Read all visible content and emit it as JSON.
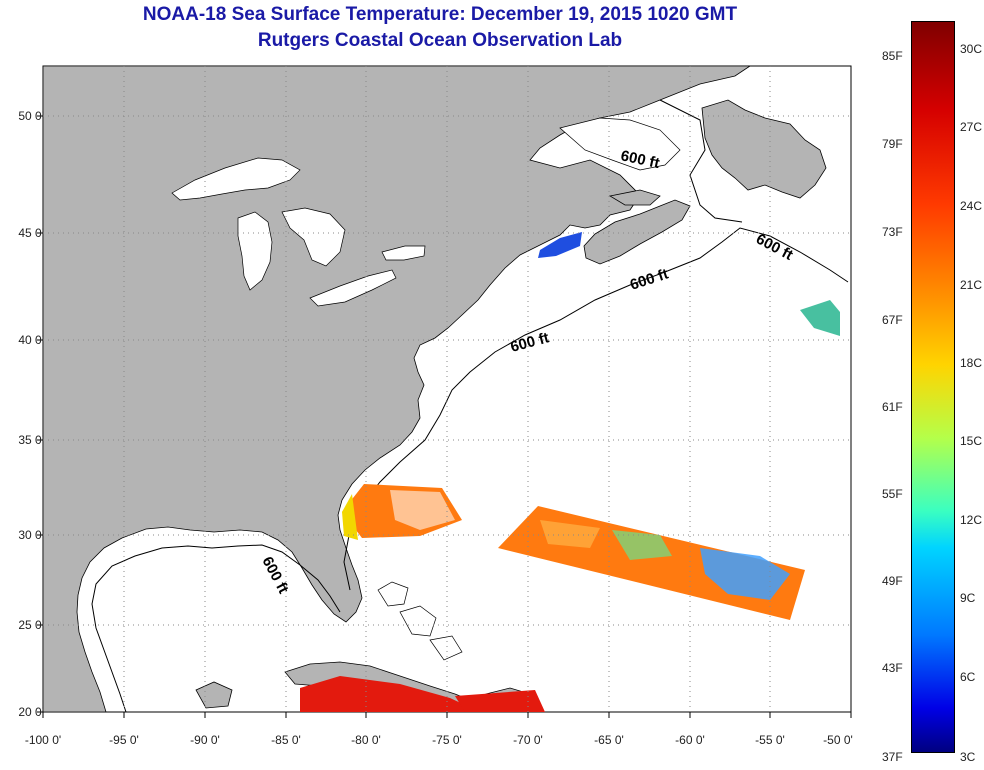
{
  "title": {
    "line1": "NOAA-18 Sea Surface Temperature:  December 19, 2015 1020 GMT",
    "line2": "Rutgers Coastal Ocean Observation Lab"
  },
  "map": {
    "lon_labels": [
      "-100 0'",
      "-95 0'",
      "-90 0'",
      "-85 0'",
      "-80 0'",
      "-75 0'",
      "-70 0'",
      "-65 0'",
      "-60 0'",
      "-55 0'",
      "-50 0'"
    ],
    "lat_labels": [
      "20 0'",
      "25 0'",
      "30 0'",
      "35 0'",
      "40 0'",
      "45 0'",
      "50 0'"
    ],
    "isobath_labels": [
      "600 ft",
      "600 ft",
      "600 ft",
      "600 ft",
      "600 ft"
    ],
    "colors": {
      "land": "#b4b4b4",
      "ocean": "#ffffff",
      "grid": "#888888",
      "coast": "#000000",
      "warm_sst": "#ff7a10",
      "hot_sst": "#e31a0e",
      "cool_sst": "#3fa0ff",
      "cold_sst": "#1f4ee0"
    }
  },
  "colorbar": {
    "fahrenheit_labels": [
      "85F",
      "79F",
      "73F",
      "67F",
      "61F",
      "55F",
      "49F",
      "43F",
      "37F"
    ],
    "celsius_labels": [
      "30C",
      "27C",
      "24C",
      "21C",
      "18C",
      "15C",
      "12C",
      "9C",
      "6C",
      "3C"
    ],
    "range_c": [
      3,
      31
    ]
  }
}
